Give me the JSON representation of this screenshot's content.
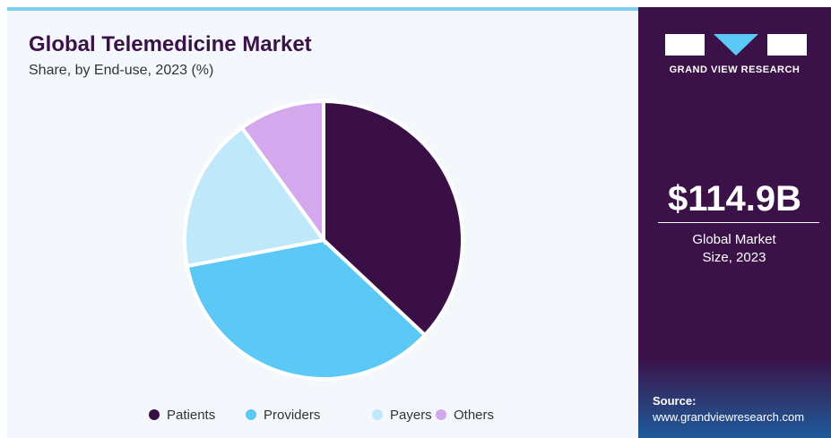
{
  "chart_data": {
    "type": "pie",
    "title": "Global Telemedicine Market",
    "subtitle": "Share, by End-use, 2023 (%)",
    "categories": [
      "Patients",
      "Providers",
      "Payers",
      "Others"
    ],
    "values": [
      37,
      35,
      18,
      10
    ],
    "colors": [
      "#3a0f45",
      "#5bc8f5",
      "#bfe8fb",
      "#d3a8ec"
    ]
  },
  "sidebar": {
    "brand": "GRAND VIEW RESEARCH",
    "market_size": "$114.9B",
    "market_size_label": "Global Market Size, 2023",
    "source_label": "Source:",
    "source_url": "www.grandviewresearch.com"
  }
}
